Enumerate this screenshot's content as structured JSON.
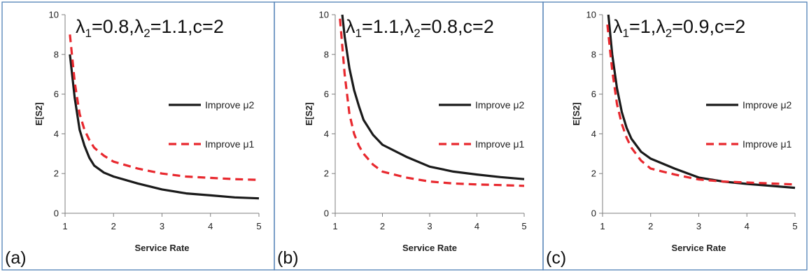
{
  "chart_data": [
    {
      "type": "line",
      "panel_label": "(a)",
      "title": "λ1=0.8,λ2=1.1,c=2",
      "title_parts": {
        "l1": "λ",
        "s1": "1",
        "v1": "=0.8,",
        "l2": "λ",
        "s2": "2",
        "v2": "=1.1,c=2"
      },
      "xlabel": "Service Rate",
      "ylabel": "E[S2]",
      "xlim": [
        1,
        5
      ],
      "ylim": [
        0,
        10
      ],
      "xticks": [
        "1",
        "2",
        "3",
        "4",
        "5"
      ],
      "yticks": [
        "0",
        "2",
        "4",
        "6",
        "8",
        "10"
      ],
      "legend_position": "right",
      "series": [
        {
          "name": "Improve μ2",
          "style": "solid",
          "color": "#1a1a1a",
          "x": [
            1.1,
            1.2,
            1.3,
            1.4,
            1.5,
            1.6,
            1.8,
            2,
            2.5,
            3,
            3.5,
            4,
            4.5,
            5
          ],
          "y": [
            8.0,
            5.8,
            4.2,
            3.4,
            2.8,
            2.4,
            2.05,
            1.85,
            1.5,
            1.2,
            1.0,
            0.9,
            0.8,
            0.75
          ]
        },
        {
          "name": "Improve μ1",
          "style": "dashed",
          "color": "#e8282e",
          "x": [
            1.1,
            1.2,
            1.3,
            1.4,
            1.5,
            1.6,
            1.8,
            2,
            2.5,
            3,
            3.5,
            4,
            4.5,
            5
          ],
          "y": [
            9.0,
            6.6,
            5.0,
            4.2,
            3.7,
            3.3,
            2.9,
            2.6,
            2.25,
            2.0,
            1.85,
            1.78,
            1.72,
            1.68
          ]
        }
      ]
    },
    {
      "type": "line",
      "panel_label": "(b)",
      "title": "λ1=1.1,λ2=0.8,c=2",
      "title_parts": {
        "l1": "λ",
        "s1": "1",
        "v1": "=1.1,",
        "l2": "λ",
        "s2": "2",
        "v2": "=0.8,c=2"
      },
      "xlabel": "Service Rate",
      "ylabel": "E[S2]",
      "xlim": [
        1,
        5
      ],
      "ylim": [
        0,
        10
      ],
      "xticks": [
        "1",
        "2",
        "3",
        "4",
        "5"
      ],
      "yticks": [
        "0",
        "2",
        "4",
        "6",
        "8",
        "10"
      ],
      "legend_position": "right",
      "series": [
        {
          "name": "Improve μ2",
          "style": "solid",
          "color": "#1a1a1a",
          "x": [
            1.15,
            1.2,
            1.3,
            1.4,
            1.5,
            1.6,
            1.8,
            2,
            2.5,
            3,
            3.5,
            4,
            4.5,
            5
          ],
          "y": [
            10.0,
            8.9,
            7.3,
            6.2,
            5.4,
            4.7,
            3.95,
            3.45,
            2.85,
            2.35,
            2.1,
            1.95,
            1.82,
            1.72
          ]
        },
        {
          "name": "Improve μ1",
          "style": "dashed",
          "color": "#e8282e",
          "x": [
            1.1,
            1.2,
            1.3,
            1.4,
            1.5,
            1.6,
            1.8,
            2,
            2.5,
            3,
            3.5,
            4,
            4.5,
            5
          ],
          "y": [
            9.8,
            7.0,
            5.0,
            4.0,
            3.4,
            3.0,
            2.45,
            2.1,
            1.8,
            1.6,
            1.5,
            1.45,
            1.42,
            1.38
          ]
        }
      ]
    },
    {
      "type": "line",
      "panel_label": "(c)",
      "title": "λ1=1,λ2=0.9,c=2",
      "title_parts": {
        "l1": "λ",
        "s1": "1",
        "v1": "=1,",
        "l2": "λ",
        "s2": "2",
        "v2": "=0.9,c=2"
      },
      "xlabel": "Service Rate",
      "ylabel": "E[S2]",
      "xlim": [
        1,
        5
      ],
      "ylim": [
        0,
        10
      ],
      "xticks": [
        "1",
        "2",
        "3",
        "4",
        "5"
      ],
      "yticks": [
        "0",
        "2",
        "4",
        "6",
        "8",
        "10"
      ],
      "legend_position": "right",
      "series": [
        {
          "name": "Improve μ2",
          "style": "solid",
          "color": "#1a1a1a",
          "x": [
            1.12,
            1.2,
            1.3,
            1.4,
            1.5,
            1.6,
            1.8,
            2,
            2.5,
            3,
            3.5,
            4,
            4.5,
            5
          ],
          "y": [
            10.0,
            8.0,
            6.3,
            5.1,
            4.3,
            3.75,
            3.1,
            2.75,
            2.25,
            1.8,
            1.6,
            1.48,
            1.38,
            1.28
          ]
        },
        {
          "name": "Improve μ1",
          "style": "dashed",
          "color": "#e8282e",
          "x": [
            1.1,
            1.2,
            1.3,
            1.4,
            1.5,
            1.6,
            1.8,
            2,
            2.5,
            3,
            3.5,
            4,
            4.5,
            5
          ],
          "y": [
            9.5,
            7.2,
            5.5,
            4.5,
            3.8,
            3.3,
            2.65,
            2.25,
            1.95,
            1.7,
            1.6,
            1.55,
            1.5,
            1.45
          ]
        }
      ]
    }
  ]
}
